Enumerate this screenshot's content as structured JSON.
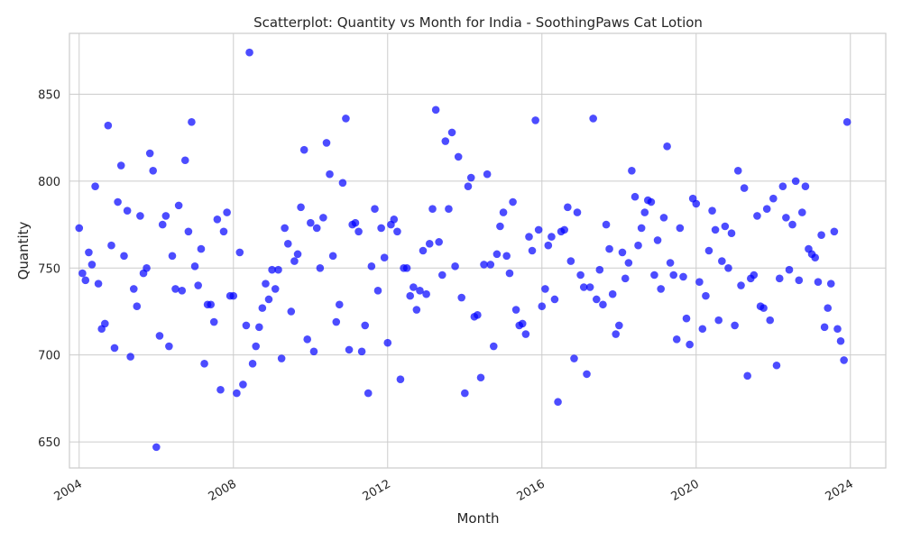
{
  "chart_data": {
    "type": "scatter",
    "title": "Scatterplot: Quantity vs Month for India - SoothingPaws Cat Lotion",
    "xlabel": "Month",
    "ylabel": "Quantity",
    "xlim": [
      "2003-10-01",
      "2024-12-01"
    ],
    "ylim": [
      635,
      885
    ],
    "x_ticks": [
      "2004",
      "2008",
      "2012",
      "2016",
      "2020",
      "2024"
    ],
    "y_ticks": [
      "650",
      "700",
      "750",
      "800",
      "850"
    ],
    "grid": true,
    "marker_color": "#0000ff",
    "series": [
      {
        "points": [
          [
            "2004-01",
            773
          ],
          [
            "2004-02",
            747
          ],
          [
            "2004-03",
            743
          ],
          [
            "2004-04",
            759
          ],
          [
            "2004-05",
            752
          ],
          [
            "2004-06",
            797
          ],
          [
            "2004-07",
            741
          ],
          [
            "2004-08",
            715
          ],
          [
            "2004-09",
            718
          ],
          [
            "2004-10",
            832
          ],
          [
            "2004-11",
            763
          ],
          [
            "2004-12",
            704
          ],
          [
            "2005-01",
            788
          ],
          [
            "2005-02",
            809
          ],
          [
            "2005-03",
            757
          ],
          [
            "2005-04",
            783
          ],
          [
            "2005-05",
            699
          ],
          [
            "2005-06",
            738
          ],
          [
            "2005-07",
            728
          ],
          [
            "2005-08",
            780
          ],
          [
            "2005-09",
            747
          ],
          [
            "2005-10",
            750
          ],
          [
            "2005-11",
            816
          ],
          [
            "2005-12",
            806
          ],
          [
            "2006-01",
            647
          ],
          [
            "2006-02",
            711
          ],
          [
            "2006-03",
            775
          ],
          [
            "2006-04",
            780
          ],
          [
            "2006-05",
            705
          ],
          [
            "2006-06",
            757
          ],
          [
            "2006-07",
            738
          ],
          [
            "2006-08",
            786
          ],
          [
            "2006-09",
            737
          ],
          [
            "2006-10",
            812
          ],
          [
            "2006-11",
            771
          ],
          [
            "2006-12",
            834
          ],
          [
            "2007-01",
            751
          ],
          [
            "2007-02",
            740
          ],
          [
            "2007-03",
            761
          ],
          [
            "2007-04",
            695
          ],
          [
            "2007-05",
            729
          ],
          [
            "2007-06",
            729
          ],
          [
            "2007-07",
            719
          ],
          [
            "2007-08",
            778
          ],
          [
            "2007-09",
            680
          ],
          [
            "2007-10",
            771
          ],
          [
            "2007-11",
            782
          ],
          [
            "2007-12",
            734
          ],
          [
            "2008-01",
            734
          ],
          [
            "2008-02",
            678
          ],
          [
            "2008-03",
            759
          ],
          [
            "2008-04",
            683
          ],
          [
            "2008-05",
            717
          ],
          [
            "2008-06",
            874
          ],
          [
            "2008-07",
            695
          ],
          [
            "2008-08",
            705
          ],
          [
            "2008-09",
            716
          ],
          [
            "2008-10",
            727
          ],
          [
            "2008-11",
            741
          ],
          [
            "2008-12",
            732
          ],
          [
            "2009-01",
            749
          ],
          [
            "2009-02",
            738
          ],
          [
            "2009-03",
            749
          ],
          [
            "2009-04",
            698
          ],
          [
            "2009-05",
            773
          ],
          [
            "2009-06",
            764
          ],
          [
            "2009-07",
            725
          ],
          [
            "2009-08",
            754
          ],
          [
            "2009-09",
            758
          ],
          [
            "2009-10",
            785
          ],
          [
            "2009-11",
            818
          ],
          [
            "2009-12",
            709
          ],
          [
            "2010-01",
            776
          ],
          [
            "2010-02",
            702
          ],
          [
            "2010-03",
            773
          ],
          [
            "2010-04",
            750
          ],
          [
            "2010-05",
            779
          ],
          [
            "2010-06",
            822
          ],
          [
            "2010-07",
            804
          ],
          [
            "2010-08",
            757
          ],
          [
            "2010-09",
            719
          ],
          [
            "2010-10",
            729
          ],
          [
            "2010-11",
            799
          ],
          [
            "2010-12",
            836
          ],
          [
            "2011-01",
            703
          ],
          [
            "2011-02",
            775
          ],
          [
            "2011-03",
            776
          ],
          [
            "2011-04",
            771
          ],
          [
            "2011-05",
            702
          ],
          [
            "2011-06",
            717
          ],
          [
            "2011-07",
            678
          ],
          [
            "2011-08",
            751
          ],
          [
            "2011-09",
            784
          ],
          [
            "2011-10",
            737
          ],
          [
            "2011-11",
            773
          ],
          [
            "2011-12",
            756
          ],
          [
            "2012-01",
            707
          ],
          [
            "2012-02",
            775
          ],
          [
            "2012-03",
            778
          ],
          [
            "2012-04",
            771
          ],
          [
            "2012-05",
            686
          ],
          [
            "2012-06",
            750
          ],
          [
            "2012-07",
            750
          ],
          [
            "2012-08",
            734
          ],
          [
            "2012-09",
            739
          ],
          [
            "2012-10",
            726
          ],
          [
            "2012-11",
            737
          ],
          [
            "2012-12",
            760
          ],
          [
            "2013-01",
            735
          ],
          [
            "2013-02",
            764
          ],
          [
            "2013-03",
            784
          ],
          [
            "2013-04",
            841
          ],
          [
            "2013-05",
            765
          ],
          [
            "2013-06",
            746
          ],
          [
            "2013-07",
            823
          ],
          [
            "2013-08",
            784
          ],
          [
            "2013-09",
            828
          ],
          [
            "2013-10",
            751
          ],
          [
            "2013-11",
            814
          ],
          [
            "2013-12",
            733
          ],
          [
            "2014-01",
            678
          ],
          [
            "2014-02",
            797
          ],
          [
            "2014-03",
            802
          ],
          [
            "2014-04",
            722
          ],
          [
            "2014-05",
            723
          ],
          [
            "2014-06",
            687
          ],
          [
            "2014-07",
            752
          ],
          [
            "2014-08",
            804
          ],
          [
            "2014-09",
            752
          ],
          [
            "2014-10",
            705
          ],
          [
            "2014-11",
            758
          ],
          [
            "2014-12",
            774
          ],
          [
            "2015-01",
            782
          ],
          [
            "2015-02",
            757
          ],
          [
            "2015-03",
            747
          ],
          [
            "2015-04",
            788
          ],
          [
            "2015-05",
            726
          ],
          [
            "2015-06",
            717
          ],
          [
            "2015-07",
            718
          ],
          [
            "2015-08",
            712
          ],
          [
            "2015-09",
            768
          ],
          [
            "2015-10",
            760
          ],
          [
            "2015-11",
            835
          ],
          [
            "2015-12",
            772
          ],
          [
            "2016-01",
            728
          ],
          [
            "2016-02",
            738
          ],
          [
            "2016-03",
            763
          ],
          [
            "2016-04",
            768
          ],
          [
            "2016-05",
            732
          ],
          [
            "2016-06",
            673
          ],
          [
            "2016-07",
            771
          ],
          [
            "2016-08",
            772
          ],
          [
            "2016-09",
            785
          ],
          [
            "2016-10",
            754
          ],
          [
            "2016-11",
            698
          ],
          [
            "2016-12",
            782
          ],
          [
            "2017-01",
            746
          ],
          [
            "2017-02",
            739
          ],
          [
            "2017-03",
            689
          ],
          [
            "2017-04",
            739
          ],
          [
            "2017-05",
            836
          ],
          [
            "2017-06",
            732
          ],
          [
            "2017-07",
            749
          ],
          [
            "2017-08",
            729
          ],
          [
            "2017-09",
            775
          ],
          [
            "2017-10",
            761
          ],
          [
            "2017-11",
            735
          ],
          [
            "2017-12",
            712
          ],
          [
            "2018-01",
            717
          ],
          [
            "2018-02",
            759
          ],
          [
            "2018-03",
            744
          ],
          [
            "2018-04",
            753
          ],
          [
            "2018-05",
            806
          ],
          [
            "2018-06",
            791
          ],
          [
            "2018-07",
            763
          ],
          [
            "2018-08",
            773
          ],
          [
            "2018-09",
            782
          ],
          [
            "2018-10",
            789
          ],
          [
            "2018-11",
            788
          ],
          [
            "2018-12",
            746
          ],
          [
            "2019-01",
            766
          ],
          [
            "2019-02",
            738
          ],
          [
            "2019-03",
            779
          ],
          [
            "2019-04",
            820
          ],
          [
            "2019-05",
            753
          ],
          [
            "2019-06",
            746
          ],
          [
            "2019-07",
            709
          ],
          [
            "2019-08",
            773
          ],
          [
            "2019-09",
            745
          ],
          [
            "2019-10",
            721
          ],
          [
            "2019-11",
            706
          ],
          [
            "2019-12",
            790
          ],
          [
            "2020-01",
            787
          ],
          [
            "2020-02",
            742
          ],
          [
            "2020-03",
            715
          ],
          [
            "2020-04",
            734
          ],
          [
            "2020-05",
            760
          ],
          [
            "2020-06",
            783
          ],
          [
            "2020-07",
            772
          ],
          [
            "2020-08",
            720
          ],
          [
            "2020-09",
            754
          ],
          [
            "2020-10",
            774
          ],
          [
            "2020-11",
            750
          ],
          [
            "2020-12",
            770
          ],
          [
            "2021-01",
            717
          ],
          [
            "2021-02",
            806
          ],
          [
            "2021-03",
            740
          ],
          [
            "2021-04",
            796
          ],
          [
            "2021-05",
            688
          ],
          [
            "2021-06",
            744
          ],
          [
            "2021-07",
            746
          ],
          [
            "2021-08",
            780
          ],
          [
            "2021-09",
            728
          ],
          [
            "2021-10",
            727
          ],
          [
            "2021-11",
            784
          ],
          [
            "2021-12",
            720
          ],
          [
            "2022-01",
            790
          ],
          [
            "2022-02",
            694
          ],
          [
            "2022-03",
            744
          ],
          [
            "2022-04",
            797
          ],
          [
            "2022-05",
            779
          ],
          [
            "2022-06",
            749
          ],
          [
            "2022-07",
            775
          ],
          [
            "2022-08",
            800
          ],
          [
            "2022-09",
            743
          ],
          [
            "2022-10",
            782
          ],
          [
            "2022-11",
            797
          ],
          [
            "2022-12",
            761
          ],
          [
            "2023-01",
            758
          ],
          [
            "2023-02",
            756
          ],
          [
            "2023-03",
            742
          ],
          [
            "2023-04",
            769
          ],
          [
            "2023-05",
            716
          ],
          [
            "2023-06",
            727
          ],
          [
            "2023-07",
            741
          ],
          [
            "2023-08",
            771
          ],
          [
            "2023-09",
            715
          ],
          [
            "2023-10",
            708
          ],
          [
            "2023-11",
            697
          ],
          [
            "2023-12",
            834
          ]
        ]
      }
    ]
  }
}
